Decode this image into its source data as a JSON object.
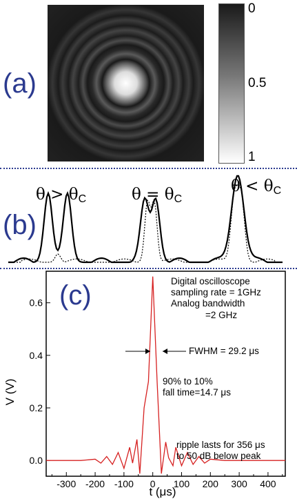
{
  "panel_a": {
    "label": "(a)",
    "colorbar": {
      "ticks": [
        {
          "value": 0,
          "label": "0"
        },
        {
          "value": 0.5,
          "label": "0.5"
        },
        {
          "value": 1,
          "label": "1"
        }
      ],
      "colors": {
        "top": "#1a1a1a",
        "bottom": "#ffffff"
      }
    }
  },
  "panel_b": {
    "label": "(b)",
    "cases": [
      {
        "main": "θ > θ",
        "sub": "C"
      },
      {
        "main": "θ = θ",
        "sub": "C"
      },
      {
        "main": "θ < θ",
        "sub": "C"
      }
    ]
  },
  "panel_c": {
    "label": "(c)",
    "notes": {
      "scope_line1": "Digital oscilloscope",
      "scope_line2": "sampling rate = 1GHz",
      "scope_line3": "Analog bandwidth",
      "scope_line4": "=2 GHz",
      "fwhm": "FWHM = 29.2 μs",
      "fall_line1": "90% to 10%",
      "fall_line2": "fall time=14.7 μs",
      "ripple_line1": "ripple lasts for 356 μs",
      "ripple_line2": "to 50 dB below peak"
    }
  },
  "colors": {
    "accent": "#2b3a8f",
    "trace": "#d62020"
  },
  "chart_data": {
    "type": "line",
    "title": "",
    "xlabel": "t (μs)",
    "ylabel": "V (V)",
    "xlim": [
      -370,
      460
    ],
    "ylim": [
      -0.06,
      0.72
    ],
    "x_ticks": [
      -300,
      -200,
      -100,
      0,
      100,
      200,
      300,
      400
    ],
    "y_ticks": [
      0.0,
      0.2,
      0.4,
      0.6
    ],
    "y_tick_labels": [
      "0.0",
      "0.2",
      "0.4",
      "0.6"
    ],
    "series": [
      {
        "x": [
          -370,
          -300,
          -250,
          -200,
          -180,
          -160,
          -140,
          -120,
          -100,
          -80,
          -70,
          -55,
          -45,
          -30,
          -15,
          0,
          15,
          30,
          45,
          55,
          70,
          80,
          100,
          120,
          140,
          160,
          180,
          200,
          250,
          300,
          460
        ],
        "y": [
          0.0,
          0.0,
          0.0,
          0.005,
          -0.01,
          0.015,
          -0.015,
          0.03,
          -0.03,
          0.05,
          -0.01,
          0.08,
          -0.05,
          0.2,
          0.3,
          0.7,
          0.3,
          -0.05,
          0.07,
          0.01,
          -0.02,
          0.05,
          -0.02,
          0.03,
          -0.015,
          0.015,
          -0.01,
          0.005,
          0.0,
          0.0,
          0.0
        ]
      }
    ]
  }
}
